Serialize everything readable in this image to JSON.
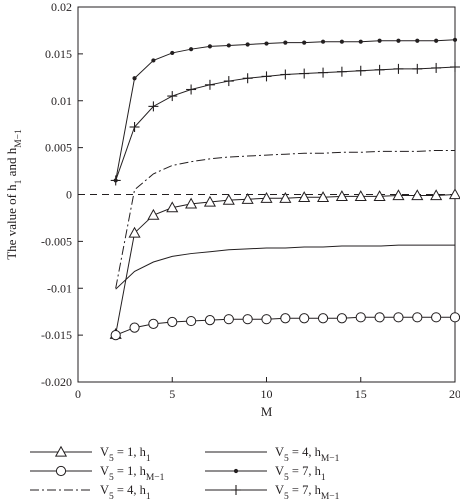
{
  "chart_data": {
    "type": "line",
    "xlabel": "M",
    "ylabel": "The value of h1 and hM−1",
    "ylabel_parts": {
      "base": "The value of h",
      "sub1": "1",
      "mid": " and h",
      "sub2": "M−1"
    },
    "xlim": [
      0,
      20
    ],
    "ylim": [
      -0.02,
      0.02
    ],
    "xticks": [
      0,
      5,
      10,
      15,
      20
    ],
    "yticks": [
      -0.02,
      -0.015,
      -0.01,
      -0.005,
      0,
      0.005,
      0.01,
      0.015,
      0.02
    ],
    "ytick_labels": [
      "-0.020",
      "-0.015",
      "-0.01",
      "-0.005",
      "0",
      "0.005",
      "0.01",
      "0.015",
      "0.02"
    ],
    "xtick_labels": [
      "0",
      "5",
      "10",
      "15",
      "20"
    ],
    "grid": false,
    "zero_reference_line": "dashed",
    "legend_position": "bottom",
    "x": [
      2,
      3,
      4,
      5,
      6,
      7,
      8,
      9,
      10,
      11,
      12,
      13,
      14,
      15,
      16,
      17,
      18,
      19,
      20
    ],
    "series": [
      {
        "name": "V5 = 1, h1",
        "legend": {
          "v": "V",
          "vsub": "5",
          "eq": " = 1, h",
          "hsub": "1"
        },
        "marker": "triangle",
        "line": "solid",
        "values": [
          -0.0149,
          -0.0041,
          -0.0022,
          -0.0014,
          -0.001,
          -0.0008,
          -0.0006,
          -0.0005,
          -0.0004,
          -0.0004,
          -0.0003,
          -0.0003,
          -0.0002,
          -0.0002,
          -0.0002,
          -0.0001,
          -0.0001,
          -0.0001,
          0.0
        ]
      },
      {
        "name": "V5 = 1, hM−1",
        "legend": {
          "v": "V",
          "vsub": "5",
          "eq": " = 1, h",
          "hsub": "M−1"
        },
        "marker": "circle",
        "line": "solid",
        "values": [
          -0.015,
          -0.0142,
          -0.0138,
          -0.0136,
          -0.0135,
          -0.0134,
          -0.0133,
          -0.0133,
          -0.0133,
          -0.0132,
          -0.0132,
          -0.0132,
          -0.0132,
          -0.0131,
          -0.0131,
          -0.0131,
          -0.0131,
          -0.0131,
          -0.0131
        ]
      },
      {
        "name": "V5 = 4, h1",
        "legend": {
          "v": "V",
          "vsub": "5",
          "eq": " = 4, h",
          "hsub": "1"
        },
        "marker": "none",
        "line": "dashdot",
        "values": [
          -0.01,
          0.0005,
          0.0022,
          0.0031,
          0.0035,
          0.0038,
          0.004,
          0.0041,
          0.0042,
          0.0043,
          0.0044,
          0.0044,
          0.0045,
          0.0045,
          0.0046,
          0.0046,
          0.0046,
          0.0047,
          0.0047
        ]
      },
      {
        "name": "V5 = 4, hM−1",
        "legend": {
          "v": "V",
          "vsub": "5",
          "eq": " = 4, h",
          "hsub": "M−1"
        },
        "marker": "none",
        "line": "solid",
        "values": [
          -0.0101,
          -0.0082,
          -0.0072,
          -0.0066,
          -0.0063,
          -0.0061,
          -0.0059,
          -0.0058,
          -0.0057,
          -0.0057,
          -0.0056,
          -0.0056,
          -0.0055,
          -0.0055,
          -0.0055,
          -0.0054,
          -0.0054,
          -0.0054,
          -0.0054
        ]
      },
      {
        "name": "V5 = 7, h1",
        "legend": {
          "v": "V",
          "vsub": "5",
          "eq": " = 7, h",
          "hsub": "1"
        },
        "marker": "dot",
        "line": "solid",
        "values": [
          0.0015,
          0.0124,
          0.0143,
          0.0151,
          0.0155,
          0.0158,
          0.0159,
          0.016,
          0.0161,
          0.0162,
          0.0162,
          0.0163,
          0.0163,
          0.0163,
          0.0164,
          0.0164,
          0.0164,
          0.0164,
          0.0165
        ]
      },
      {
        "name": "V5 = 7, hM−1",
        "legend": {
          "v": "V",
          "vsub": "5",
          "eq": " = 7, h",
          "hsub": "M−1"
        },
        "marker": "plus",
        "line": "solid",
        "values": [
          0.0015,
          0.0072,
          0.0094,
          0.0105,
          0.0112,
          0.0117,
          0.0121,
          0.0124,
          0.0126,
          0.0128,
          0.0129,
          0.013,
          0.0131,
          0.0132,
          0.0133,
          0.0134,
          0.0134,
          0.0135,
          0.0136
        ]
      }
    ]
  }
}
